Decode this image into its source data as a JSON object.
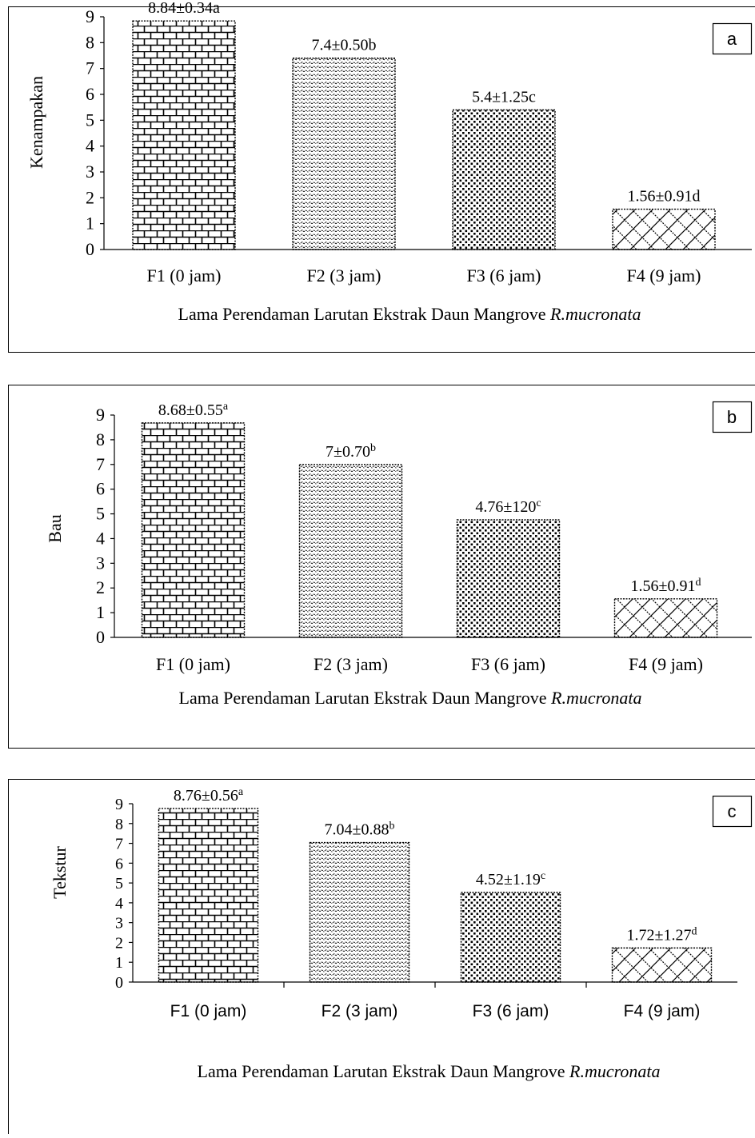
{
  "charts": [
    {
      "panel_label": "a",
      "chart_data": {
        "type": "bar",
        "categories": [
          "F1 (0 jam)",
          "F2 (3 jam)",
          "F3 (6 jam)",
          "F4 (9 jam)"
        ],
        "values": [
          8.84,
          7.4,
          5.4,
          1.56
        ],
        "data_labels": [
          {
            "text": "8.84±0.34a",
            "sup": ""
          },
          {
            "text": "7.4±0.50b",
            "sup": ""
          },
          {
            "text": "5.4±1.25c",
            "sup": ""
          },
          {
            "text": "1.56±0.91d",
            "sup": ""
          }
        ],
        "title": "",
        "xlabel": "Lama Perendaman Larutan Ekstrak Daun Mangrove",
        "xlabel_italic": "R.mucronata",
        "ylabel": "Kenampakan",
        "ylim": [
          0,
          9
        ],
        "yticks": [
          0,
          1,
          2,
          3,
          4,
          5,
          6,
          7,
          8,
          9
        ],
        "grid": false,
        "legend": "none",
        "patterns": [
          "brick",
          "zigzag",
          "dots",
          "diagonal-cross"
        ]
      }
    },
    {
      "panel_label": "b",
      "chart_data": {
        "type": "bar",
        "categories": [
          "F1 (0 jam)",
          "F2 (3 jam)",
          "F3 (6 jam)",
          "F4 (9 jam)"
        ],
        "values": [
          8.68,
          7.0,
          4.76,
          1.56
        ],
        "data_labels": [
          {
            "text": "8.68±0.55",
            "sup": "a"
          },
          {
            "text": "7±0.70",
            "sup": "b"
          },
          {
            "text": "4.76±120",
            "sup": "c"
          },
          {
            "text": "1.56±0.91",
            "sup": "d"
          }
        ],
        "title": "",
        "xlabel": "Lama Perendaman Larutan Ekstrak Daun Mangrove",
        "xlabel_italic": "R.mucronata",
        "ylabel": "Bau",
        "ylim": [
          0,
          9
        ],
        "yticks": [
          0,
          1,
          2,
          3,
          4,
          5,
          6,
          7,
          8,
          9
        ],
        "grid": false,
        "legend": "none",
        "patterns": [
          "brick",
          "zigzag",
          "dots",
          "diagonal-cross"
        ]
      }
    },
    {
      "panel_label": "c",
      "chart_data": {
        "type": "bar",
        "categories": [
          "F1 (0 jam)",
          "F2 (3 jam)",
          "F3 (6 jam)",
          "F4 (9 jam)"
        ],
        "values": [
          8.76,
          7.04,
          4.52,
          1.72
        ],
        "data_labels": [
          {
            "text": "8.76±0.56",
            "sup": "a"
          },
          {
            "text": "7.04±0.88",
            "sup": "b"
          },
          {
            "text": "4.52±1.19",
            "sup": "c"
          },
          {
            "text": "1.72±1.27",
            "sup": "d"
          }
        ],
        "title": "",
        "xlabel": "Lama Perendaman Larutan Ekstrak Daun Mangrove",
        "xlabel_italic": "R.mucronata",
        "ylabel": "Tekstur",
        "ylim": [
          0,
          9
        ],
        "yticks": [
          0,
          1,
          2,
          3,
          4,
          5,
          6,
          7,
          8,
          9
        ],
        "grid": false,
        "legend": "none",
        "patterns": [
          "brick",
          "zigzag",
          "dots",
          "diagonal-cross"
        ]
      }
    }
  ]
}
